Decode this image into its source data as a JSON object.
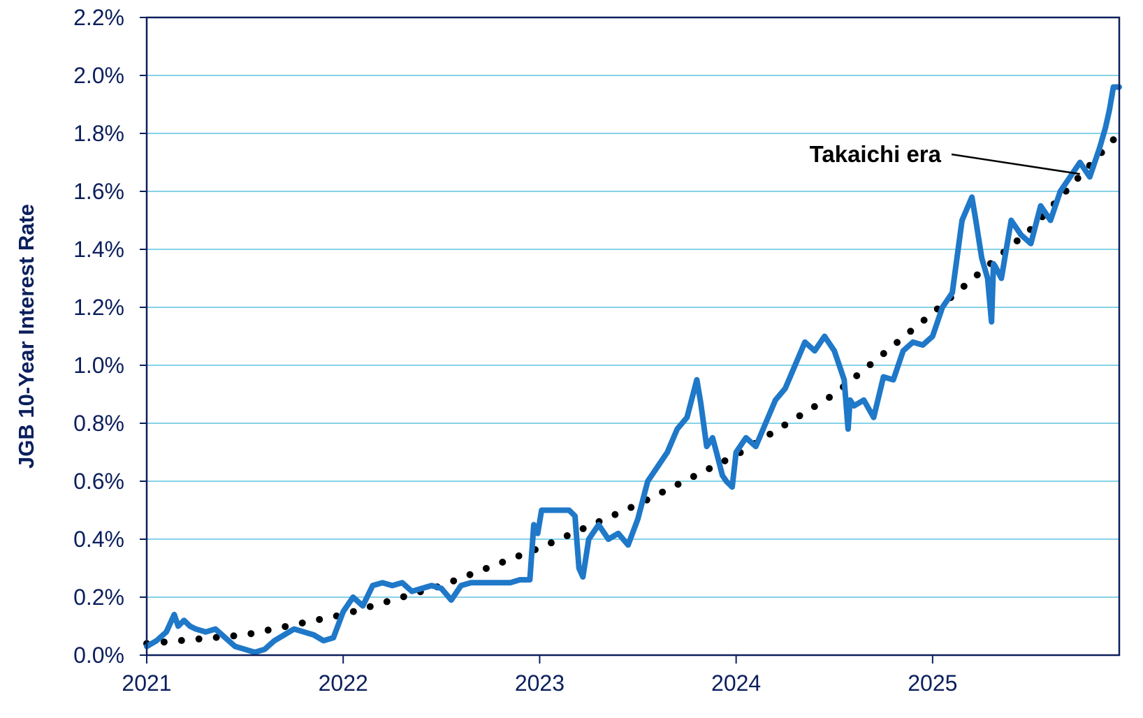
{
  "chart_data": {
    "type": "line",
    "ylabel": "JGB 10-Year Interest Rate",
    "xlabel": "",
    "x_ticks": [
      "2021",
      "2022",
      "2023",
      "2024",
      "2025"
    ],
    "y_ticks": [
      "0.0%",
      "0.2%",
      "0.4%",
      "0.6%",
      "0.8%",
      "1.0%",
      "1.2%",
      "1.4%",
      "1.6%",
      "1.8%",
      "2.0%",
      "2.2%"
    ],
    "ylim": [
      0,
      2.2
    ],
    "xlim": [
      2021.0,
      2025.95
    ],
    "grid": "horizontal",
    "annotation": {
      "text": "Takaichi era",
      "points_to": {
        "x": 2025.75,
        "y": 1.66
      }
    },
    "series": [
      {
        "style": "solid",
        "color": "#1f78c8",
        "x": [
          2021.0,
          2021.05,
          2021.1,
          2021.14,
          2021.16,
          2021.19,
          2021.22,
          2021.25,
          2021.3,
          2021.35,
          2021.4,
          2021.45,
          2021.5,
          2021.55,
          2021.6,
          2021.65,
          2021.7,
          2021.75,
          2021.8,
          2021.85,
          2021.9,
          2021.95,
          2022.0,
          2022.05,
          2022.1,
          2022.15,
          2022.2,
          2022.25,
          2022.3,
          2022.35,
          2022.4,
          2022.45,
          2022.5,
          2022.55,
          2022.6,
          2022.65,
          2022.7,
          2022.75,
          2022.8,
          2022.85,
          2022.9,
          2022.95,
          2022.97,
          2022.99,
          2023.01,
          2023.05,
          2023.1,
          2023.15,
          2023.18,
          2023.2,
          2023.22,
          2023.25,
          2023.3,
          2023.35,
          2023.4,
          2023.45,
          2023.5,
          2023.55,
          2023.6,
          2023.65,
          2023.7,
          2023.75,
          2023.8,
          2023.82,
          2023.85,
          2023.88,
          2023.9,
          2023.93,
          2023.95,
          2023.98,
          2024.0,
          2024.05,
          2024.1,
          2024.15,
          2024.2,
          2024.25,
          2024.3,
          2024.35,
          2024.4,
          2024.45,
          2024.5,
          2024.55,
          2024.57,
          2024.58,
          2024.6,
          2024.65,
          2024.7,
          2024.75,
          2024.8,
          2024.85,
          2024.9,
          2024.95,
          2025.0,
          2025.05,
          2025.1,
          2025.15,
          2025.2,
          2025.22,
          2025.25,
          2025.28,
          2025.3,
          2025.31,
          2025.32,
          2025.35,
          2025.4,
          2025.45,
          2025.5,
          2025.55,
          2025.6,
          2025.65,
          2025.7,
          2025.75,
          2025.8,
          2025.85,
          2025.88,
          2025.9,
          2025.92,
          2025.95
        ],
        "y": [
          0.03,
          0.05,
          0.08,
          0.14,
          0.1,
          0.12,
          0.1,
          0.09,
          0.08,
          0.09,
          0.06,
          0.03,
          0.02,
          0.01,
          0.02,
          0.05,
          0.07,
          0.09,
          0.08,
          0.07,
          0.05,
          0.06,
          0.15,
          0.2,
          0.17,
          0.24,
          0.25,
          0.24,
          0.25,
          0.22,
          0.23,
          0.24,
          0.23,
          0.19,
          0.24,
          0.25,
          0.25,
          0.25,
          0.25,
          0.25,
          0.26,
          0.26,
          0.45,
          0.42,
          0.5,
          0.5,
          0.5,
          0.5,
          0.48,
          0.3,
          0.27,
          0.4,
          0.45,
          0.4,
          0.42,
          0.38,
          0.47,
          0.6,
          0.65,
          0.7,
          0.78,
          0.82,
          0.95,
          0.87,
          0.72,
          0.75,
          0.7,
          0.62,
          0.6,
          0.58,
          0.7,
          0.75,
          0.72,
          0.8,
          0.88,
          0.92,
          1.0,
          1.08,
          1.05,
          1.1,
          1.05,
          0.95,
          0.78,
          0.88,
          0.86,
          0.88,
          0.82,
          0.96,
          0.95,
          1.05,
          1.08,
          1.07,
          1.1,
          1.2,
          1.25,
          1.5,
          1.58,
          1.5,
          1.37,
          1.3,
          1.15,
          1.35,
          1.34,
          1.3,
          1.5,
          1.45,
          1.42,
          1.55,
          1.5,
          1.6,
          1.65,
          1.7,
          1.65,
          1.75,
          1.82,
          1.88,
          1.96,
          1.96
        ]
      },
      {
        "style": "dotted",
        "color": "#000000",
        "x": [
          2021.0,
          2021.5,
          2022.0,
          2022.5,
          2023.0,
          2023.5,
          2024.0,
          2024.5,
          2025.0,
          2025.5,
          2025.95
        ],
        "y": [
          0.04,
          0.07,
          0.14,
          0.24,
          0.37,
          0.52,
          0.69,
          0.9,
          1.18,
          1.47,
          1.8
        ]
      }
    ]
  }
}
